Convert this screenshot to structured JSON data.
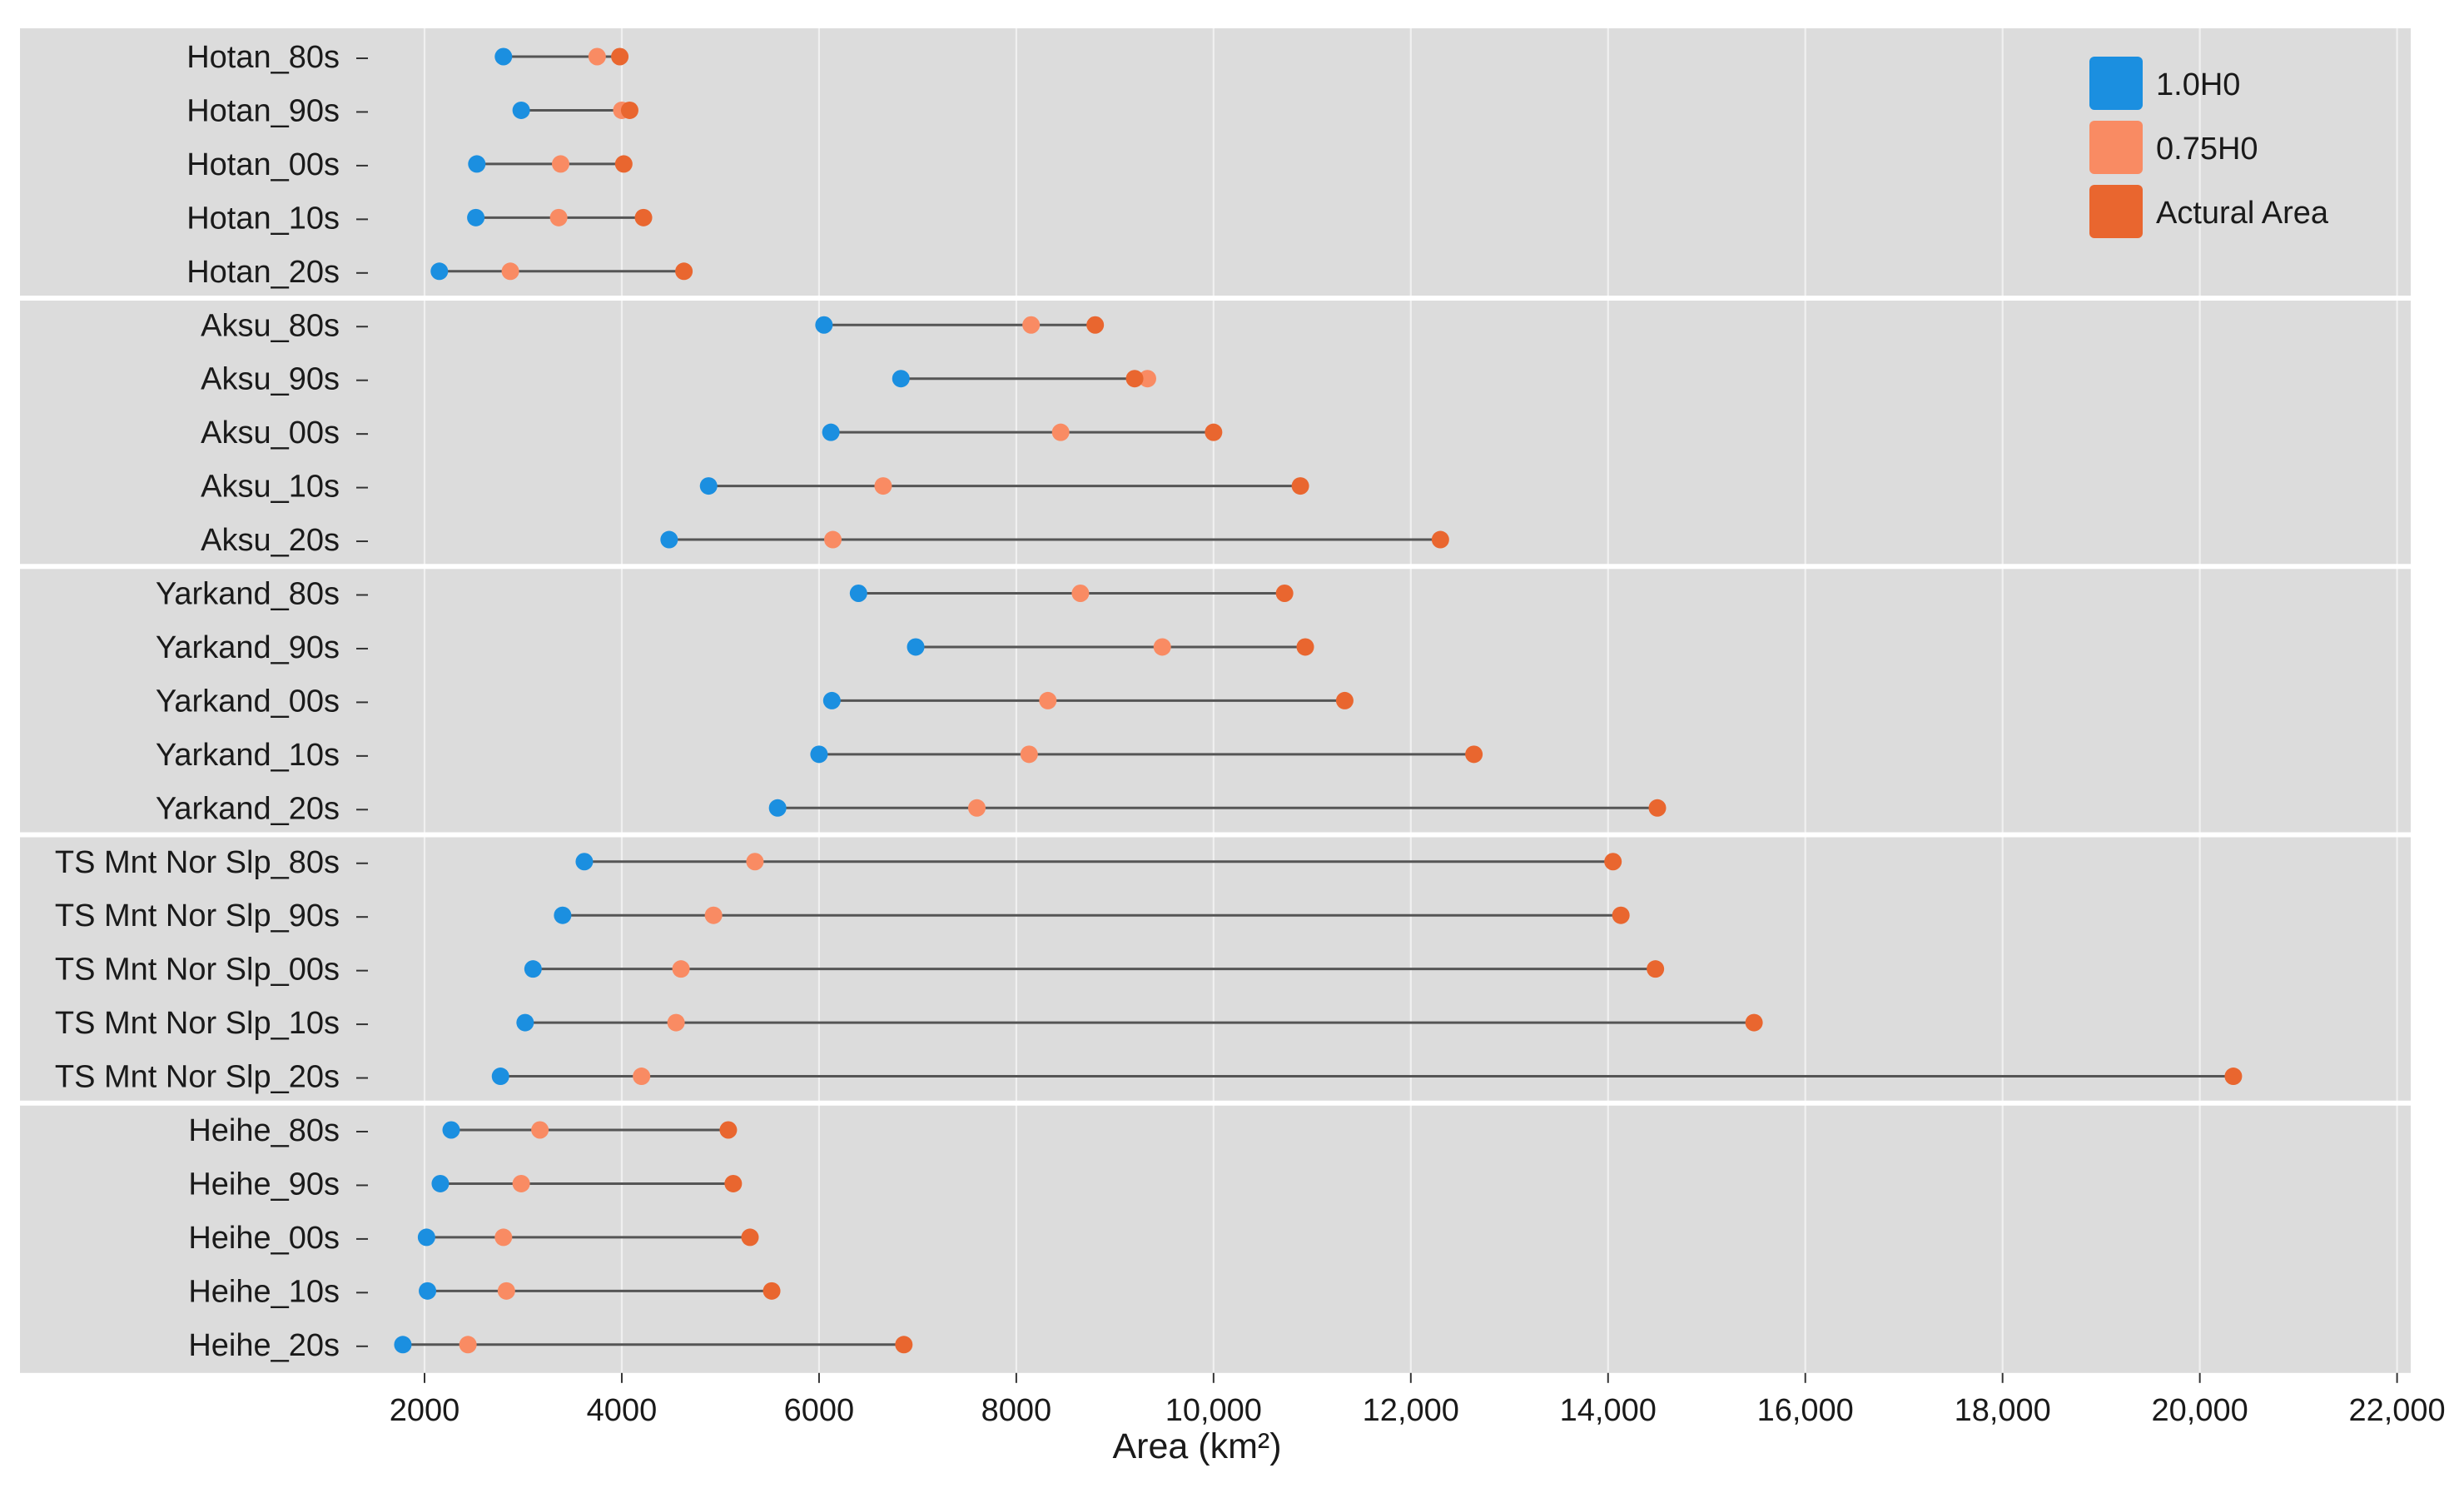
{
  "chart_data": {
    "type": "dumbbell",
    "xlabel": "Area (km²)",
    "xlim": [
      1500,
      22200
    ],
    "xticks": [
      2000,
      4000,
      6000,
      8000,
      10000,
      12000,
      14000,
      16000,
      18000,
      20000,
      22000
    ],
    "xtick_labels": [
      "2000",
      "4000",
      "6000",
      "8000",
      "10,000",
      "12,000",
      "14,000",
      "16,000",
      "18,000",
      "20,000",
      "22,000"
    ],
    "grid": true,
    "legend_position": "top-right",
    "series": [
      {
        "key": "h10",
        "name": "1.0H0",
        "color": "#1b8fe0"
      },
      {
        "key": "h075",
        "name": "0.75H0",
        "color": "#f98b63"
      },
      {
        "key": "actual",
        "name": "Actural Area",
        "color": "#e9662f"
      }
    ],
    "groups": [
      {
        "name": "Hotan",
        "rows": [
          {
            "label": "Hotan_80s",
            "h10": 2800,
            "h075": 3750,
            "actual": 3980
          },
          {
            "label": "Hotan_90s",
            "h10": 2980,
            "h075": 4000,
            "actual": 4080
          },
          {
            "label": "Hotan_00s",
            "h10": 2530,
            "h075": 3380,
            "actual": 4020
          },
          {
            "label": "Hotan_10s",
            "h10": 2520,
            "h075": 3360,
            "actual": 4220
          },
          {
            "label": "Hotan_20s",
            "h10": 2150,
            "h075": 2870,
            "actual": 4630
          }
        ]
      },
      {
        "name": "Aksu",
        "rows": [
          {
            "label": "Aksu_80s",
            "h10": 6050,
            "h075": 8150,
            "actual": 8800
          },
          {
            "label": "Aksu_90s",
            "h10": 6830,
            "h075": 9330,
            "actual": 9200
          },
          {
            "label": "Aksu_00s",
            "h10": 6120,
            "h075": 8450,
            "actual": 10000
          },
          {
            "label": "Aksu_10s",
            "h10": 4880,
            "h075": 6650,
            "actual": 10880
          },
          {
            "label": "Aksu_20s",
            "h10": 4480,
            "h075": 6140,
            "actual": 12300
          }
        ]
      },
      {
        "name": "Yarkand",
        "rows": [
          {
            "label": "Yarkand_80s",
            "h10": 6400,
            "h075": 8650,
            "actual": 10720
          },
          {
            "label": "Yarkand_90s",
            "h10": 6980,
            "h075": 9480,
            "actual": 10930
          },
          {
            "label": "Yarkand_00s",
            "h10": 6130,
            "h075": 8320,
            "actual": 11330
          },
          {
            "label": "Yarkand_10s",
            "h10": 6000,
            "h075": 8130,
            "actual": 12640
          },
          {
            "label": "Yarkand_20s",
            "h10": 5580,
            "h075": 7600,
            "actual": 14500
          }
        ]
      },
      {
        "name": "TS Mnt Nor Slp",
        "rows": [
          {
            "label": "TS Mnt Nor Slp_80s",
            "h10": 3620,
            "h075": 5350,
            "actual": 14050
          },
          {
            "label": "TS Mnt Nor Slp_90s",
            "h10": 3400,
            "h075": 4930,
            "actual": 14130
          },
          {
            "label": "TS Mnt Nor Slp_00s",
            "h10": 3100,
            "h075": 4600,
            "actual": 14480
          },
          {
            "label": "TS Mnt Nor Slp_10s",
            "h10": 3020,
            "h075": 4550,
            "actual": 15480
          },
          {
            "label": "TS Mnt Nor Slp_20s",
            "h10": 2770,
            "h075": 4200,
            "actual": 20340
          }
        ]
      },
      {
        "name": "Heihe",
        "rows": [
          {
            "label": "Heihe_80s",
            "h10": 2270,
            "h075": 3170,
            "actual": 5080
          },
          {
            "label": "Heihe_90s",
            "h10": 2160,
            "h075": 2980,
            "actual": 5130
          },
          {
            "label": "Heihe_00s",
            "h10": 2020,
            "h075": 2800,
            "actual": 5300
          },
          {
            "label": "Heihe_10s",
            "h10": 2030,
            "h075": 2830,
            "actual": 5520
          },
          {
            "label": "Heihe_20s",
            "h10": 1780,
            "h075": 2440,
            "actual": 6860
          }
        ]
      }
    ]
  }
}
